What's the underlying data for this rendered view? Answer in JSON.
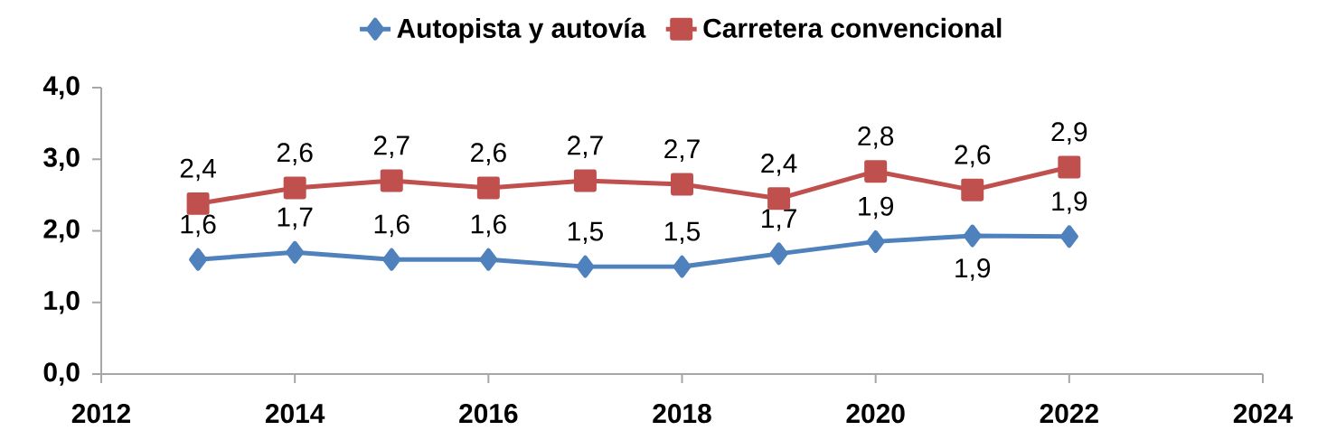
{
  "chart_data": {
    "type": "line",
    "x": [
      2013,
      2014,
      2015,
      2016,
      2017,
      2018,
      2019,
      2020,
      2021,
      2022
    ],
    "series": [
      {
        "name": "Autopista y autovía",
        "color": "#4f81bd",
        "marker": "diamond",
        "values": [
          1.6,
          1.7,
          1.6,
          1.6,
          1.5,
          1.5,
          1.68,
          1.85,
          1.93,
          1.92
        ],
        "value_labels": [
          "1,6",
          "1,7",
          "1,6",
          "1,6",
          "1,5",
          "1,5",
          "1,7",
          "1,9",
          "1,9",
          "1,9"
        ]
      },
      {
        "name": "Carretera convencional",
        "color": "#c0504d",
        "marker": "square",
        "values": [
          2.38,
          2.6,
          2.7,
          2.6,
          2.7,
          2.65,
          2.45,
          2.83,
          2.57,
          2.89
        ],
        "value_labels": [
          "2,4",
          "2,6",
          "2,7",
          "2,6",
          "2,7",
          "2,7",
          "2,4",
          "2,8",
          "2,6",
          "2,9"
        ]
      }
    ],
    "xlim": [
      2012,
      2024
    ],
    "xticks": [
      2012,
      2014,
      2016,
      2018,
      2020,
      2022,
      2024
    ],
    "ylim": [
      0,
      4
    ],
    "yticks": [
      {
        "value": 0,
        "label": "0,0"
      },
      {
        "value": 1,
        "label": "1,0"
      },
      {
        "value": 2,
        "label": "2,0"
      },
      {
        "value": 3,
        "label": "3,0"
      },
      {
        "value": 4,
        "label": "4,0"
      }
    ],
    "legend": "top",
    "line_style": "solid"
  }
}
